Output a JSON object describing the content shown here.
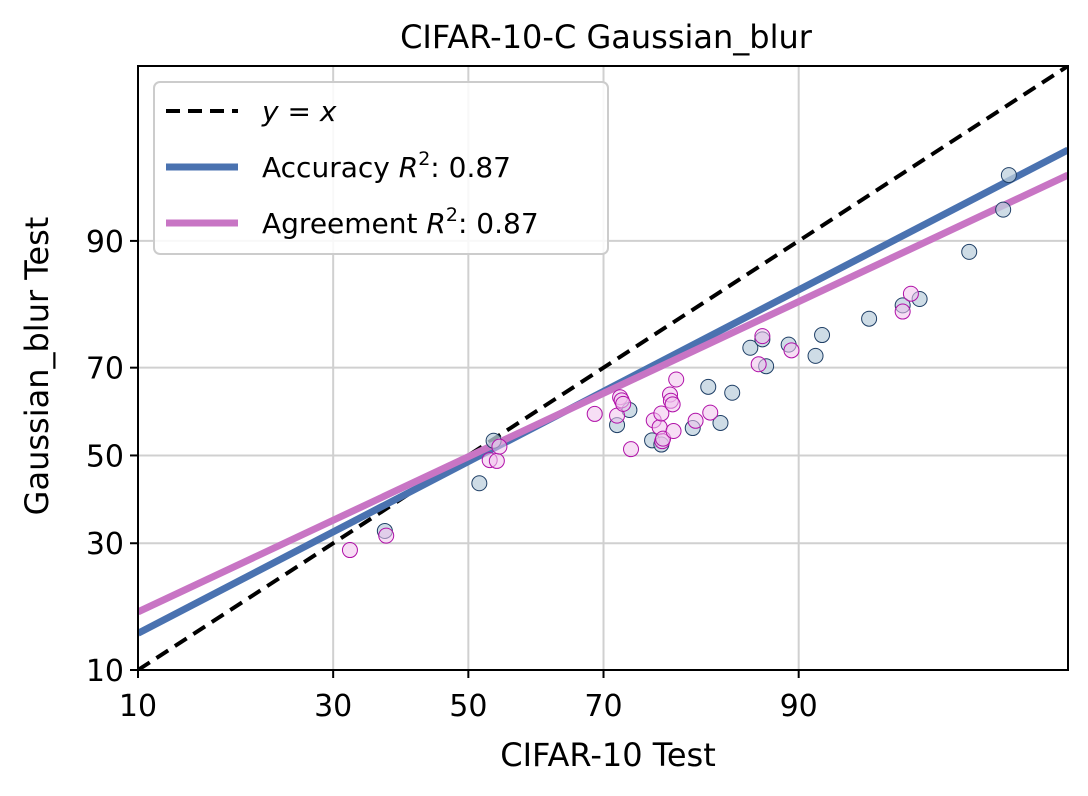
{
  "chart_data": {
    "type": "scatter",
    "title": "CIFAR-10-C Gaussian_blur",
    "xlabel": "CIFAR-10 Test",
    "ylabel": "Gaussian_blur Test",
    "axis_scale": "probit",
    "xlim": [
      10,
      99
    ],
    "ylim": [
      10,
      99
    ],
    "xticks": [
      10,
      30,
      50,
      70,
      90
    ],
    "yticks": [
      10,
      30,
      50,
      70,
      90
    ],
    "grid": true,
    "legend_position": "top-left",
    "legend": [
      {
        "label_prefix": "y = x",
        "label_suffix": "",
        "style": "dashed",
        "color": "#000000"
      },
      {
        "label_prefix": "Accuracy R",
        "label_suffix": ": 0.87",
        "style": "solid",
        "color": "#4a72b0"
      },
      {
        "label_prefix": "Agreement R",
        "label_suffix": ": 0.87",
        "style": "solid",
        "color": "#c875c4"
      }
    ],
    "fit_lines": [
      {
        "name": "Accuracy",
        "x": [
          10,
          99
        ],
        "y": [
          14.4,
          96.6
        ],
        "color": "#4a72b0"
      },
      {
        "name": "Agreement",
        "x": [
          10,
          99
        ],
        "y": [
          17.5,
          95.3
        ],
        "color": "#c875c4"
      }
    ],
    "series": [
      {
        "name": "Accuracy",
        "color": "#4a72b0",
        "points": [
          {
            "x": 37.3,
            "y": 32.6
          },
          {
            "x": 51.7,
            "y": 43.4
          },
          {
            "x": 53.9,
            "y": 53.5
          },
          {
            "x": 71.8,
            "y": 57.2
          },
          {
            "x": 73.4,
            "y": 60.7
          },
          {
            "x": 76.2,
            "y": 53.6
          },
          {
            "x": 77.3,
            "y": 52.6
          },
          {
            "x": 80.8,
            "y": 56.5
          },
          {
            "x": 82.4,
            "y": 65.9
          },
          {
            "x": 83.6,
            "y": 57.7
          },
          {
            "x": 84.7,
            "y": 64.6
          },
          {
            "x": 86.3,
            "y": 74.0
          },
          {
            "x": 87.3,
            "y": 75.6
          },
          {
            "x": 87.6,
            "y": 70.3
          },
          {
            "x": 89.3,
            "y": 74.6
          },
          {
            "x": 91.1,
            "y": 72.4
          },
          {
            "x": 91.5,
            "y": 76.4
          },
          {
            "x": 94.0,
            "y": 79.3
          },
          {
            "x": 95.4,
            "y": 81.5
          },
          {
            "x": 96.0,
            "y": 82.5
          },
          {
            "x": 97.4,
            "y": 88.8
          },
          {
            "x": 98.1,
            "y": 92.9
          },
          {
            "x": 98.2,
            "y": 95.3
          }
        ]
      },
      {
        "name": "Agreement",
        "color": "#c875c4",
        "points": [
          {
            "x": 32.3,
            "y": 28.6
          },
          {
            "x": 37.5,
            "y": 31.6
          },
          {
            "x": 53.3,
            "y": 48.9
          },
          {
            "x": 54.4,
            "y": 48.7
          },
          {
            "x": 54.8,
            "y": 52.1
          },
          {
            "x": 68.8,
            "y": 59.8
          },
          {
            "x": 71.8,
            "y": 59.4
          },
          {
            "x": 72.2,
            "y": 63.6
          },
          {
            "x": 72.4,
            "y": 62.9
          },
          {
            "x": 72.6,
            "y": 62.1
          },
          {
            "x": 73.6,
            "y": 51.5
          },
          {
            "x": 76.4,
            "y": 58.3
          },
          {
            "x": 77.1,
            "y": 56.7
          },
          {
            "x": 77.3,
            "y": 59.9
          },
          {
            "x": 77.4,
            "y": 53.4
          },
          {
            "x": 77.5,
            "y": 54.0
          },
          {
            "x": 78.3,
            "y": 64.2
          },
          {
            "x": 78.4,
            "y": 62.8
          },
          {
            "x": 78.6,
            "y": 62.0
          },
          {
            "x": 78.7,
            "y": 55.8
          },
          {
            "x": 79.0,
            "y": 67.5
          },
          {
            "x": 81.1,
            "y": 58.2
          },
          {
            "x": 82.6,
            "y": 60.1
          },
          {
            "x": 87.0,
            "y": 70.7
          },
          {
            "x": 87.3,
            "y": 76.2
          },
          {
            "x": 89.5,
            "y": 73.5
          },
          {
            "x": 95.4,
            "y": 80.5
          },
          {
            "x": 95.7,
            "y": 83.3
          }
        ]
      }
    ]
  }
}
